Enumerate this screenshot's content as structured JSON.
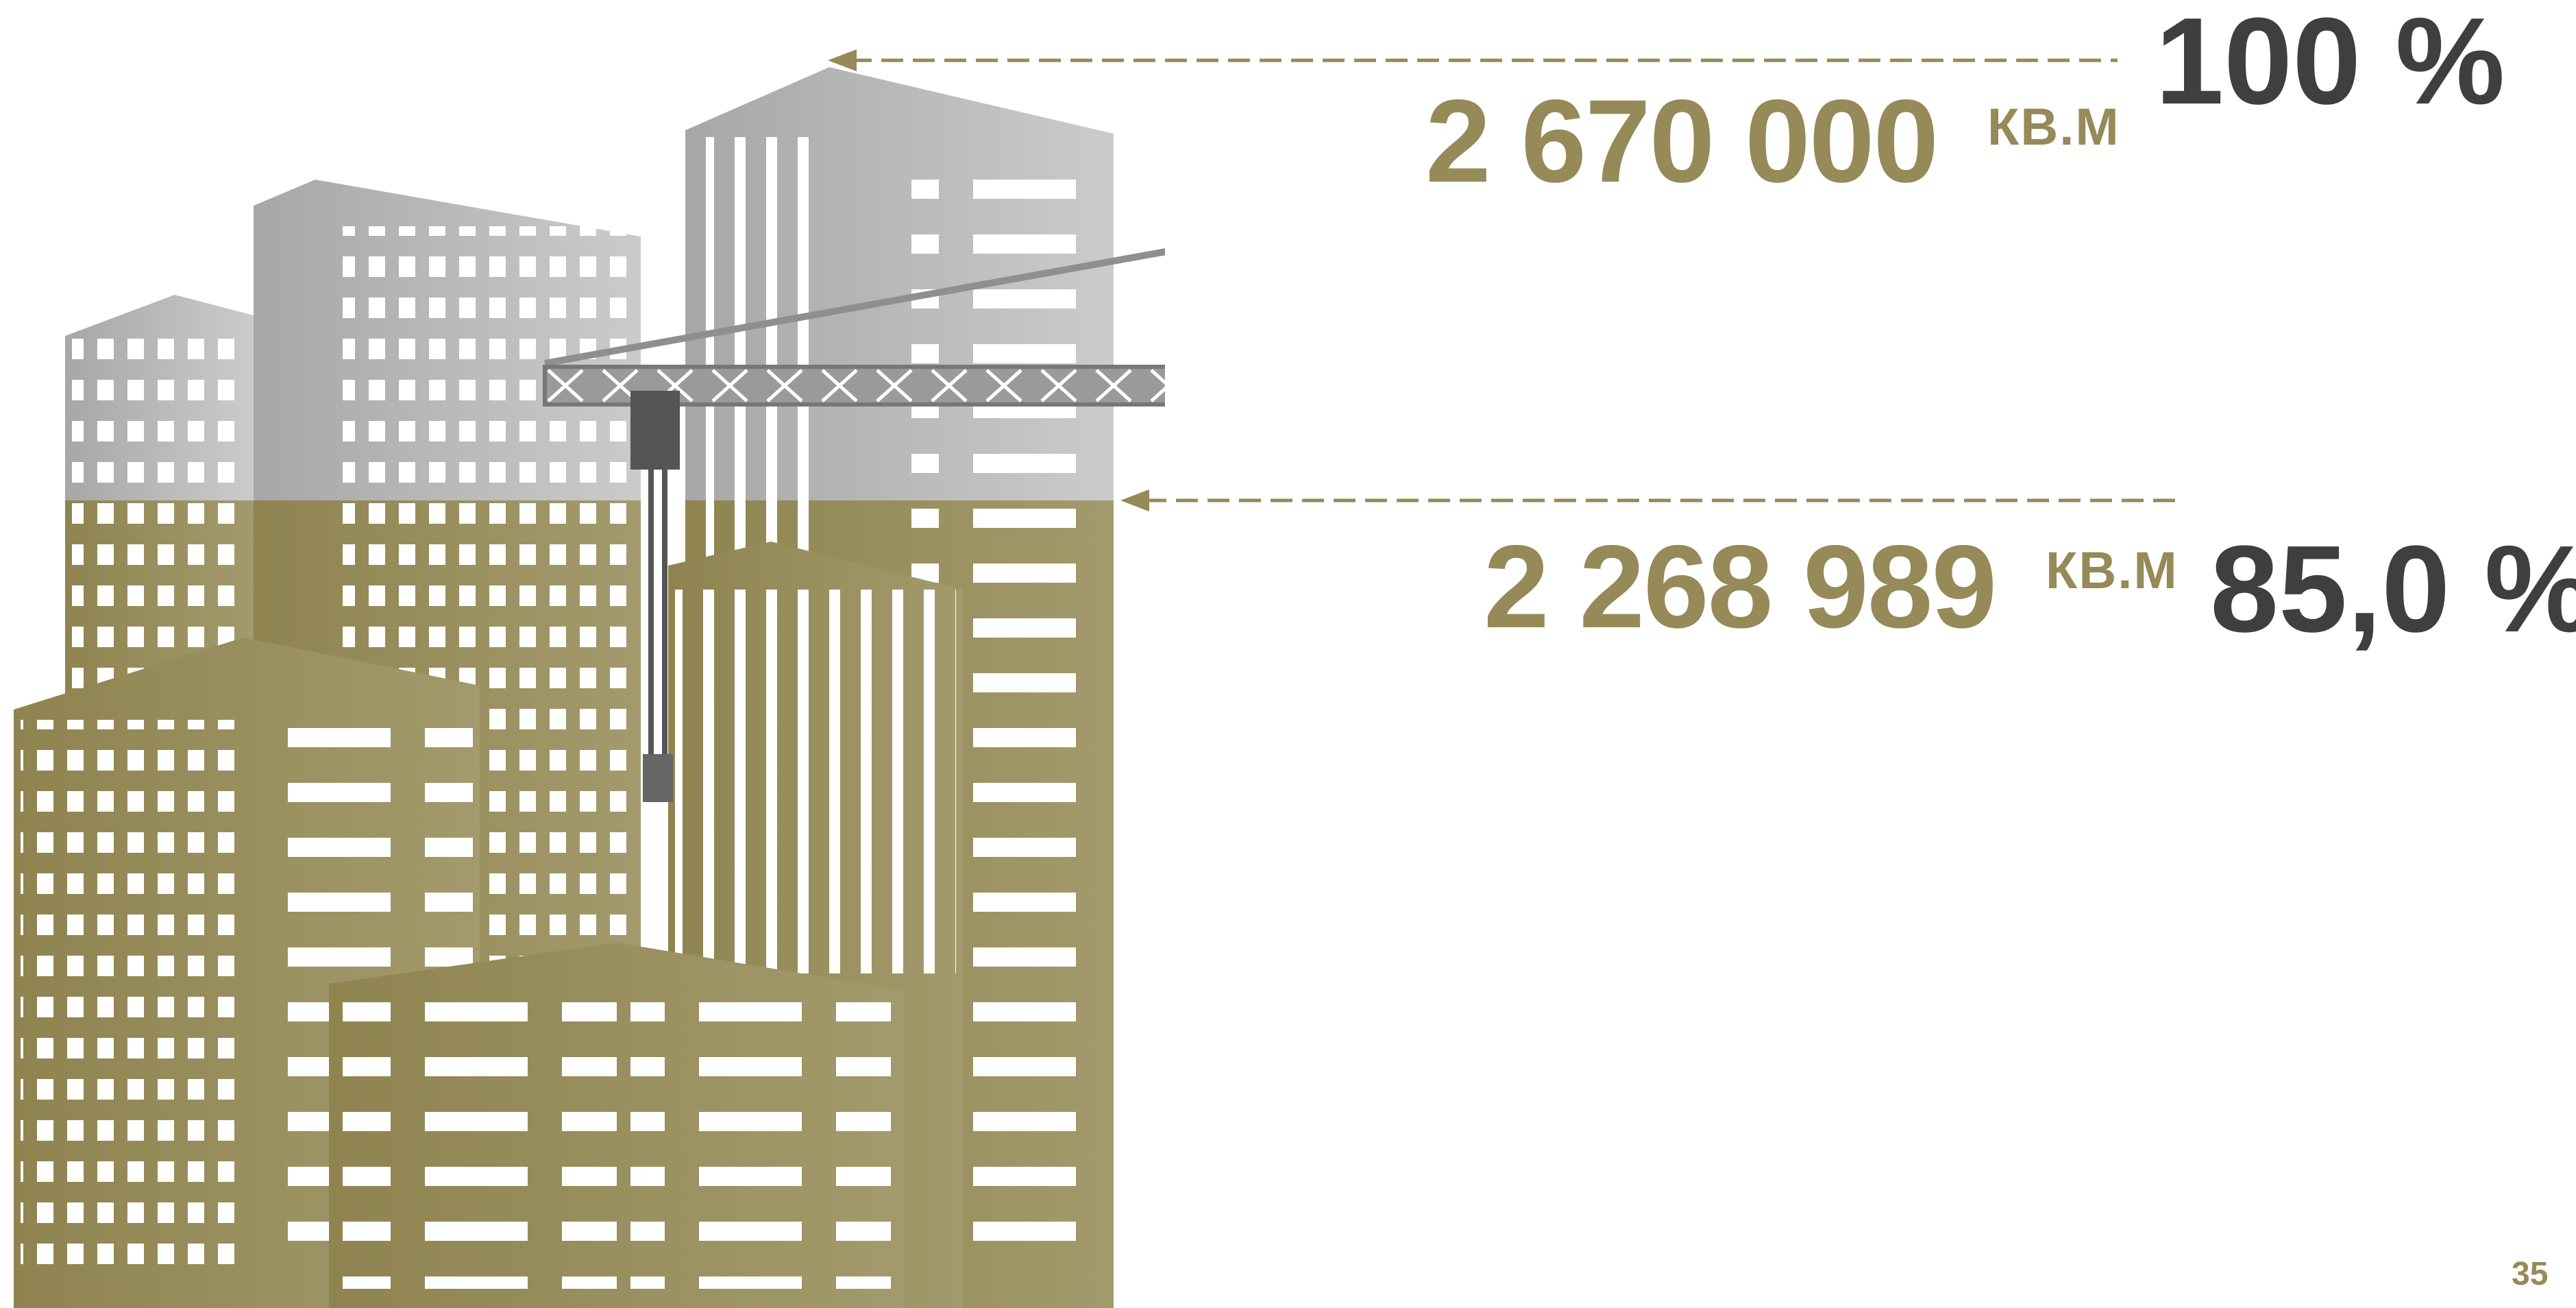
{
  "total": {
    "area_value": "2 670 000",
    "area_unit": "КВ.М",
    "percent": "100 %"
  },
  "completed": {
    "area_value": "2 268 989",
    "area_unit": "КВ.М",
    "percent": "85,0 %"
  },
  "completion_fraction": 0.85,
  "page_number": "35",
  "colors": {
    "olive": "#958a58",
    "dark_text": "#3f3f3f",
    "building_grey": "#b5b5b5",
    "crane_grey": "#8f8f8f"
  }
}
